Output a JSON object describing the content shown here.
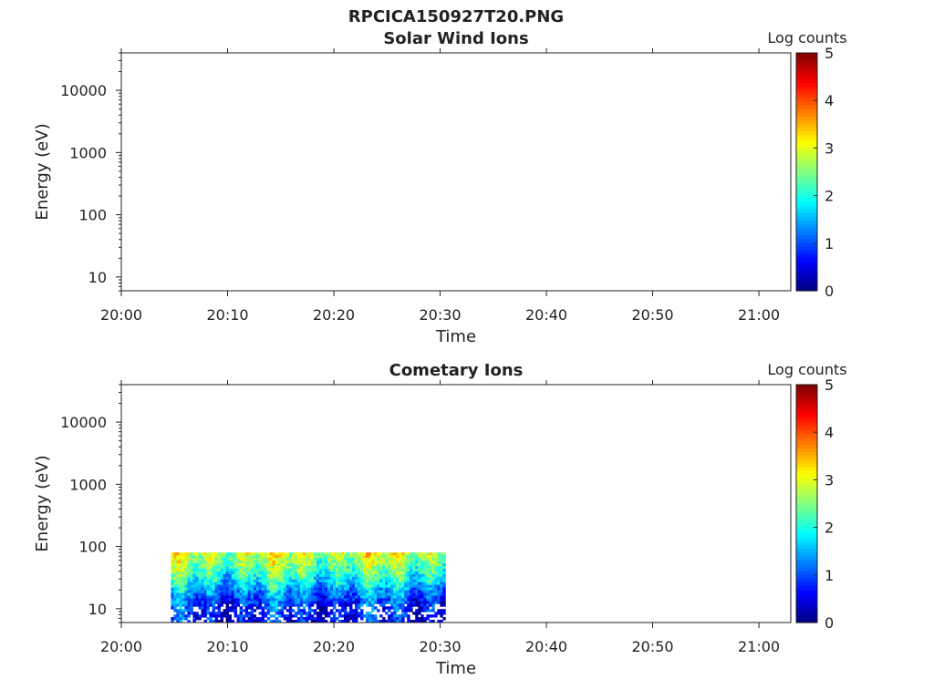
{
  "figure_title": "RPCICA150927T20.PNG",
  "chart_data": [
    {
      "type": "heatmap",
      "title": "Solar Wind Ions",
      "xlabel": "Time",
      "ylabel": "Energy (eV)",
      "x_ticks": [
        "20:00",
        "20:10",
        "20:20",
        "20:30",
        "20:40",
        "20:50",
        "21:00"
      ],
      "xlim": [
        "20:00",
        "21:03"
      ],
      "y_scale": "log",
      "y_ticks": [
        "10",
        "100",
        "1000",
        "10000"
      ],
      "ylim": [
        6,
        40000
      ],
      "colorbar": {
        "label": "Log counts",
        "min": 0,
        "max": 5,
        "ticks": [
          "0",
          "1",
          "2",
          "3",
          "4",
          "5"
        ],
        "colormap": "jet"
      },
      "data": "empty"
    },
    {
      "type": "heatmap",
      "title": "Cometary Ions",
      "xlabel": "Time",
      "ylabel": "Energy (eV)",
      "x_ticks": [
        "20:00",
        "20:10",
        "20:20",
        "20:30",
        "20:40",
        "20:50",
        "21:00"
      ],
      "xlim": [
        "20:00",
        "21:03"
      ],
      "y_scale": "log",
      "y_ticks": [
        "10",
        "100",
        "1000",
        "10000"
      ],
      "ylim": [
        6,
        40000
      ],
      "colorbar": {
        "label": "Log counts",
        "min": 0,
        "max": 5,
        "ticks": [
          "0",
          "1",
          "2",
          "3",
          "4",
          "5"
        ],
        "colormap": "jet"
      },
      "data": {
        "time_range": [
          "20:04:40",
          "20:30:30"
        ],
        "energy_range_eV": [
          6,
          80
        ],
        "log_counts_by_energy": [
          {
            "energy_eV": 80,
            "log_counts": 2.9
          },
          {
            "energy_eV": 50,
            "log_counts": 2.5
          },
          {
            "energy_eV": 30,
            "log_counts": 2.0
          },
          {
            "energy_eV": 20,
            "log_counts": 1.4
          },
          {
            "energy_eV": 12,
            "log_counts": 0.9
          },
          {
            "energy_eV": 6,
            "log_counts": 0.6
          }
        ]
      }
    }
  ]
}
